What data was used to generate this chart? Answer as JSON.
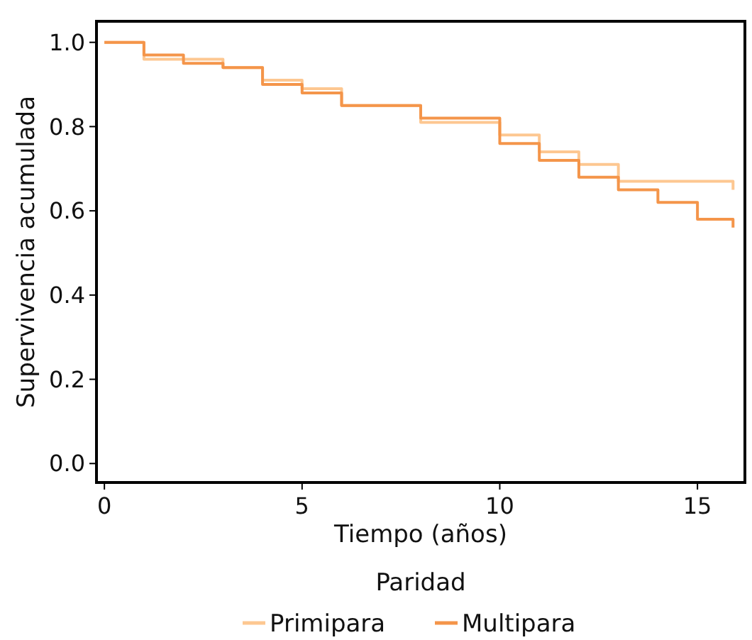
{
  "chart_data": {
    "type": "step",
    "xlabel": "Tiempo (años)",
    "ylabel": "Supervivencia acumulada",
    "legend_title": "Paridad",
    "legend": "bottom",
    "grid": false,
    "xlim": [
      -0.2,
      16.2
    ],
    "ylim": [
      -0.045,
      1.05
    ],
    "xticks": [
      0,
      5,
      10,
      15
    ],
    "yticks": [
      {
        "value": 0,
        "label": "0.0"
      },
      0.2,
      0.4,
      0.6,
      0.8,
      {
        "value": 1,
        "label": "1.0"
      }
    ],
    "series": [
      {
        "name": "Primipara",
        "color": "#fdc791",
        "x": [
          0,
          1,
          3,
          4,
          5,
          6,
          8,
          10,
          11,
          12,
          13,
          15.9,
          15.9
        ],
        "values": [
          1,
          0.96,
          0.94,
          0.91,
          0.89,
          0.85,
          0.81,
          0.78,
          0.74,
          0.71,
          0.67,
          0.67,
          0.65
        ]
      },
      {
        "name": "Multipara",
        "color": "#f4954a",
        "x": [
          0,
          1,
          2,
          3,
          4,
          5,
          6,
          8,
          10,
          11,
          12,
          13,
          14,
          15,
          15.9,
          15.9
        ],
        "values": [
          1,
          0.97,
          0.95,
          0.94,
          0.9,
          0.88,
          0.85,
          0.82,
          0.76,
          0.72,
          0.68,
          0.65,
          0.62,
          0.58,
          0.58,
          0.56
        ]
      }
    ]
  }
}
